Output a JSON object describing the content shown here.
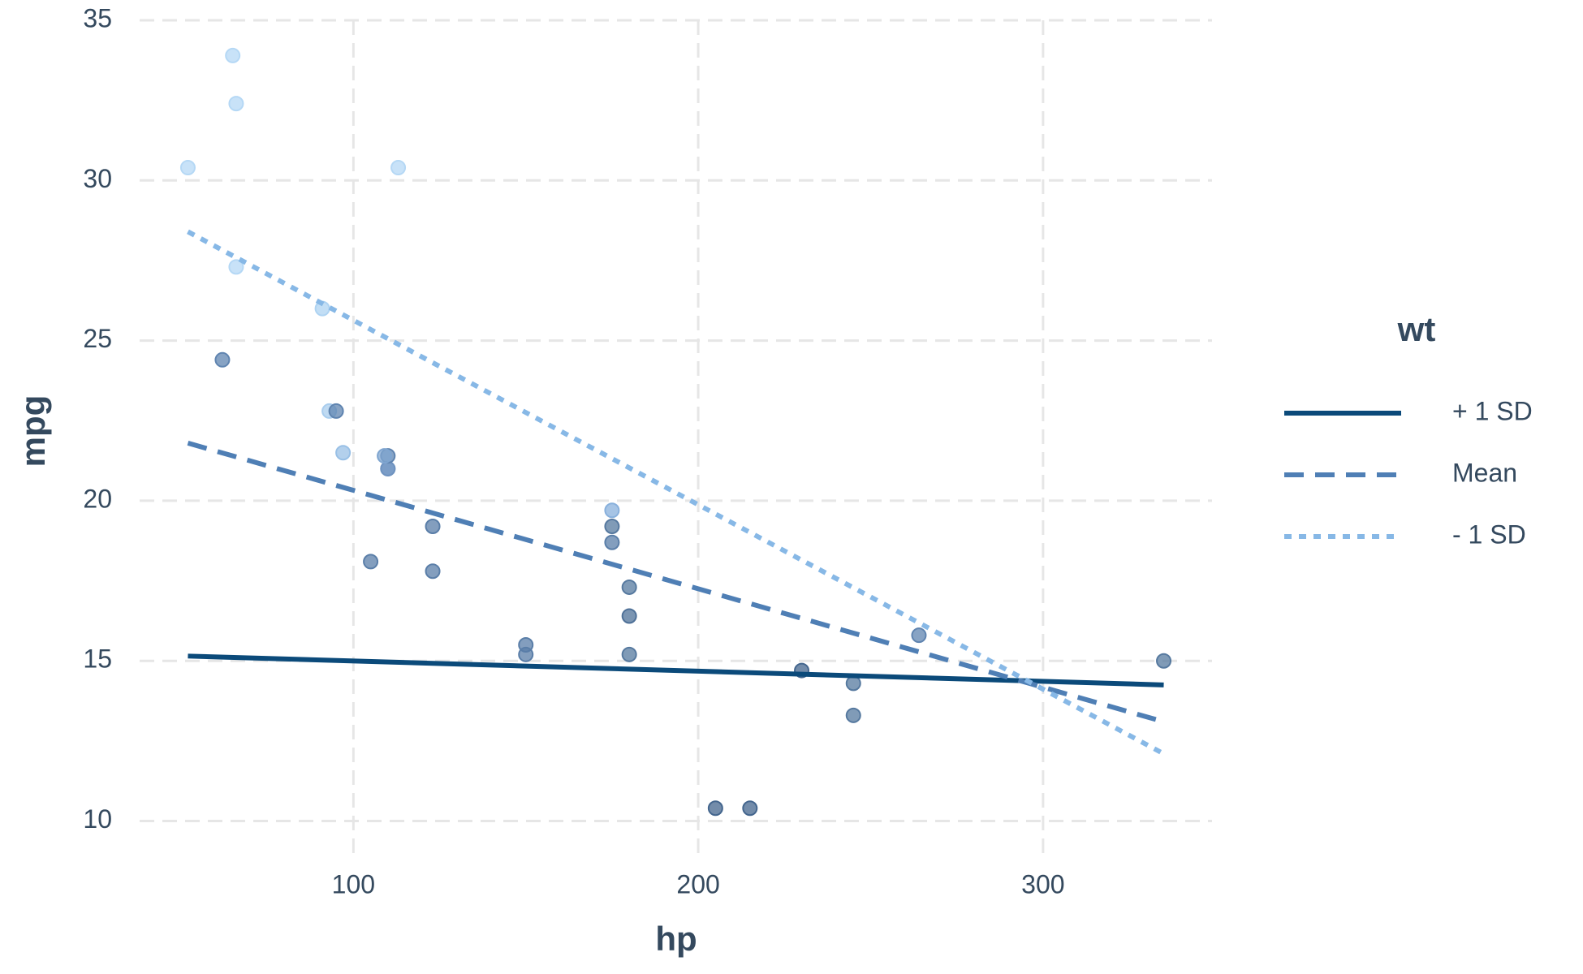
{
  "chart_data": {
    "type": "scatter",
    "x_label": "hp",
    "y_label": "mpg",
    "legend_title": "wt",
    "legend_position": "right",
    "grid": true,
    "xlim": [
      38,
      349
    ],
    "ylim": [
      9,
      35
    ],
    "xticks": [
      100,
      200,
      300
    ],
    "yticks": [
      10,
      15,
      20,
      25,
      30,
      35
    ],
    "points": {
      "x": [
        110,
        110,
        93,
        110,
        175,
        105,
        245,
        62,
        95,
        123,
        123,
        180,
        180,
        180,
        205,
        215,
        230,
        66,
        52,
        65,
        97,
        150,
        150,
        245,
        175,
        66,
        91,
        113,
        264,
        175,
        335,
        109
      ],
      "values": [
        21.0,
        21.0,
        22.8,
        21.4,
        18.7,
        18.1,
        14.3,
        24.4,
        22.8,
        19.2,
        17.8,
        16.4,
        17.3,
        15.2,
        10.4,
        10.4,
        14.7,
        32.4,
        30.4,
        33.9,
        21.5,
        15.5,
        15.2,
        13.3,
        19.2,
        27.3,
        26.0,
        30.4,
        15.8,
        19.7,
        15.0,
        21.4
      ],
      "colors": [
        "#7fa5d0",
        "#6f93c0",
        "#a9cdee",
        "#5f84b0",
        "#5a7ea8",
        "#5a7ea8",
        "#56799f",
        "#5f84b0",
        "#5f84b0",
        "#5a7ea8",
        "#5a7ea8",
        "#4f7198",
        "#56799f",
        "#56799f",
        "#44668e",
        "#44668e",
        "#44668e",
        "#b5d8f5",
        "#b5d8f5",
        "#b5d8f5",
        "#99c0e6",
        "#5a7ea8",
        "#5a7ea8",
        "#56799f",
        "#56799f",
        "#b5d8f5",
        "#aed3f2",
        "#b5d8f5",
        "#5f84b0",
        "#88b0dc",
        "#56799f",
        "#7fa5d0"
      ]
    },
    "series": [
      {
        "name": "+ 1 SD",
        "color": "#0b4a7a",
        "dash": "solid",
        "x": [
          52,
          335
        ],
        "values": [
          15.15,
          14.25
        ]
      },
      {
        "name": "Mean",
        "color": "#4f7fb5",
        "dash": "long",
        "x": [
          52,
          335
        ],
        "values": [
          21.8,
          13.1
        ]
      },
      {
        "name": "- 1 SD",
        "color": "#87b8e6",
        "dash": "short",
        "x": [
          52,
          335
        ],
        "values": [
          28.4,
          12.1
        ]
      }
    ]
  }
}
